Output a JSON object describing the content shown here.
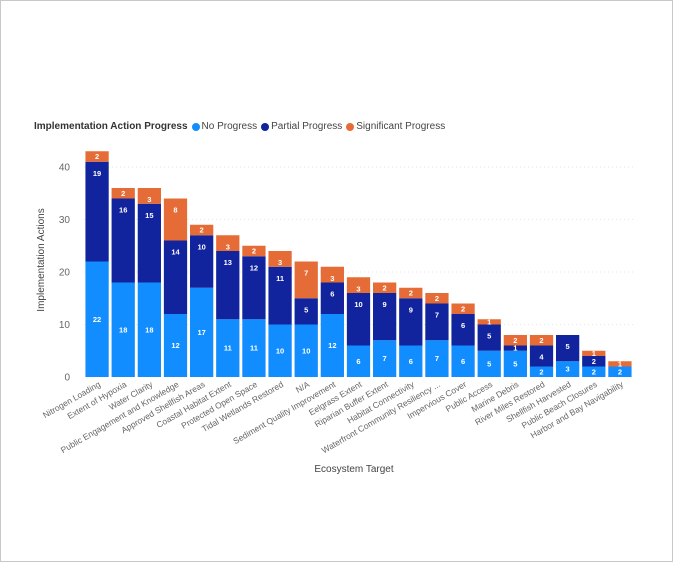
{
  "chart_data": {
    "type": "bar",
    "stacked": true,
    "legend_title": "Implementation Action Progress",
    "legend_position": "top-left",
    "xlabel": "Ecosystem Target",
    "ylabel": "Implementation Actions",
    "ylim": [
      0,
      45
    ],
    "yticks": [
      0,
      10,
      20,
      30,
      40
    ],
    "grid": true,
    "categories": [
      "Nitrogen Loading",
      "Extent of Hypoxia",
      "Water Clarity",
      "Public Engagement and Knowledge",
      "Approved Shellfish Areas",
      "Coastal Habitat Extent",
      "Protected Open Space",
      "Tidal Wetlands Restored",
      "N/A",
      "Sediment Quality Improvement",
      "Eelgrass Extent",
      "Riparian Buffer Extent",
      "Habitat Connectivity",
      "Waterfront Community Resiliency ...",
      "Impervious Cover",
      "Public Access",
      "Marine Debris",
      "River Miles Restored",
      "Shellfish Harvested",
      "Public Beach Closures",
      "Harbor and Bay Navigability"
    ],
    "series": [
      {
        "name": "No Progress",
        "color": "#118dff",
        "values": [
          22,
          18,
          18,
          12,
          17,
          11,
          11,
          10,
          10,
          12,
          6,
          7,
          6,
          7,
          6,
          5,
          5,
          2,
          3,
          2,
          2
        ]
      },
      {
        "name": "Partial Progress",
        "color": "#12239e",
        "values": [
          19,
          16,
          15,
          14,
          10,
          13,
          12,
          11,
          5,
          6,
          10,
          9,
          9,
          7,
          6,
          5,
          1,
          4,
          5,
          2,
          0
        ]
      },
      {
        "name": "Significant Progress",
        "color": "#e66c37",
        "values": [
          2,
          2,
          3,
          8,
          2,
          3,
          2,
          3,
          7,
          3,
          3,
          2,
          2,
          2,
          2,
          1,
          2,
          2,
          0,
          1,
          1
        ]
      }
    ]
  }
}
